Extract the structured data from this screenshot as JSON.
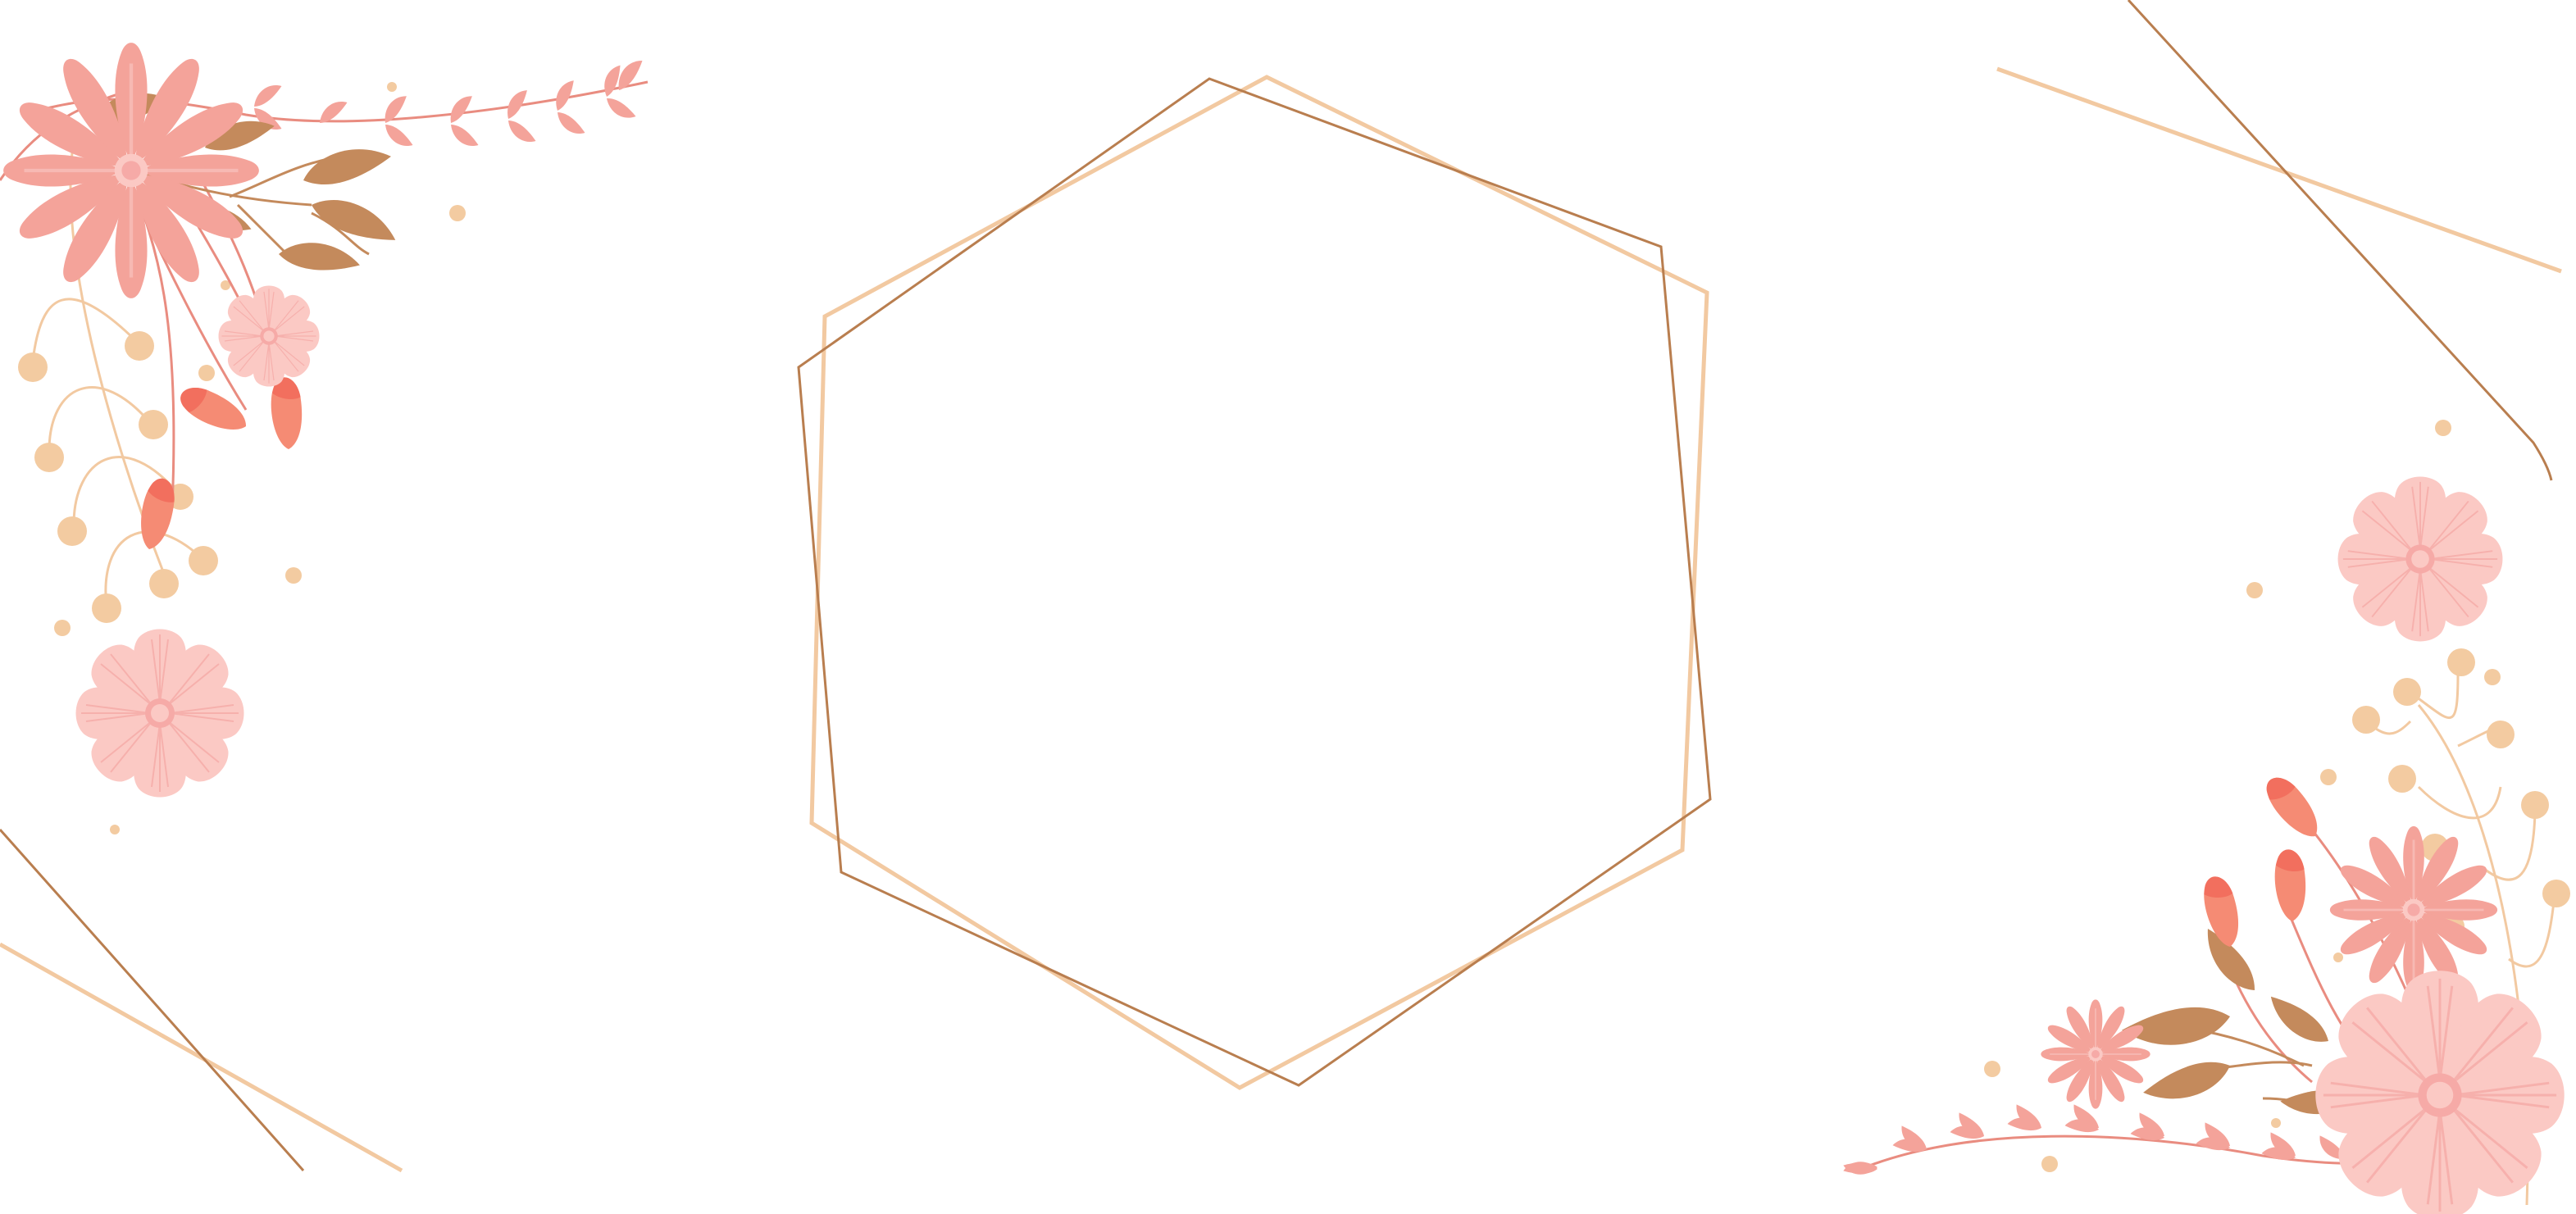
{
  "artwork": {
    "subject": "floral-hexagon-frame",
    "colors": {
      "background": "#ffffff",
      "frame_dark": "#b97e4f",
      "frame_light": "#f2c9a1",
      "petal_coral": "#f4a39a",
      "petal_pink": "#fbc9c4",
      "petal_stripe": "#f6aaa7",
      "bud_orange": "#f58b74",
      "bud_tip": "#f26f5e",
      "leaf": "#c48a5c",
      "berry": "#f3cba1",
      "stem": "#e98c80",
      "stem_light": "#f2c9a1"
    }
  }
}
